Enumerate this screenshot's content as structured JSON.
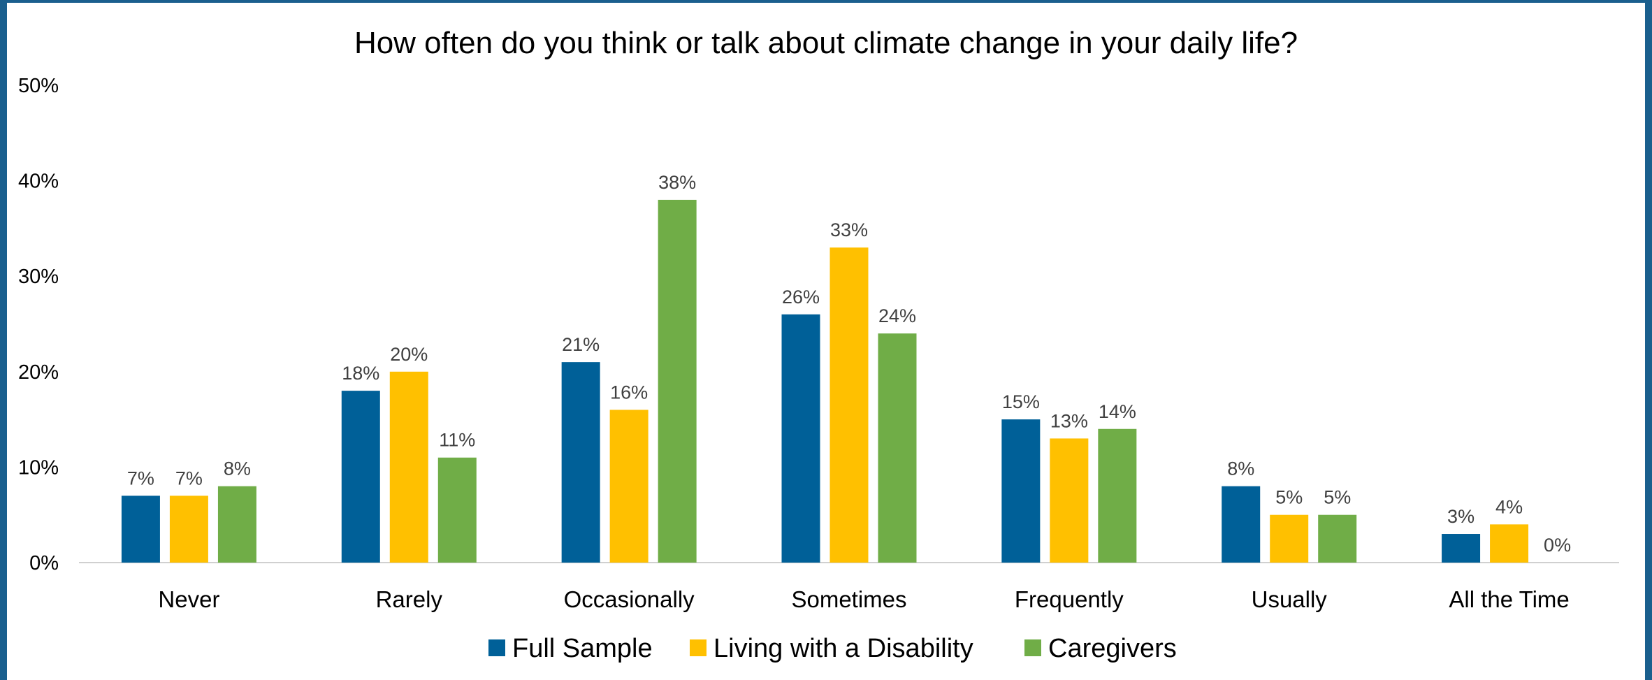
{
  "chart_data": {
    "type": "bar",
    "title": "How often do you think or talk about climate change in your daily life?",
    "categories": [
      "Never",
      "Rarely",
      "Occasionally",
      "Sometimes",
      "Frequently",
      "Usually",
      "All the Time"
    ],
    "series": [
      {
        "name": "Full Sample",
        "color": "#006098",
        "values": [
          7,
          18,
          21,
          26,
          15,
          8,
          3
        ],
        "labels": [
          "7%",
          "18%",
          "21%",
          "26%",
          "15%",
          "8%",
          "3%"
        ]
      },
      {
        "name": "Living with a Disability",
        "color": "#FFC000",
        "values": [
          7,
          20,
          16,
          33,
          13,
          5,
          4
        ],
        "labels": [
          "7%",
          "20%",
          "16%",
          "33%",
          "13%",
          "5%",
          "4%"
        ]
      },
      {
        "name": "Caregivers",
        "color": "#70AD47",
        "values": [
          8,
          11,
          38,
          24,
          14,
          5,
          0
        ],
        "labels": [
          "8%",
          "11%",
          "38%",
          "24%",
          "14%",
          "5%",
          "0%"
        ]
      }
    ],
    "yticks": [
      "0%",
      "10%",
      "20%",
      "30%",
      "40%",
      "50%"
    ],
    "ylim": [
      0,
      50
    ],
    "xlabel": "",
    "ylabel": "",
    "grid": false,
    "legend_position": "bottom"
  }
}
